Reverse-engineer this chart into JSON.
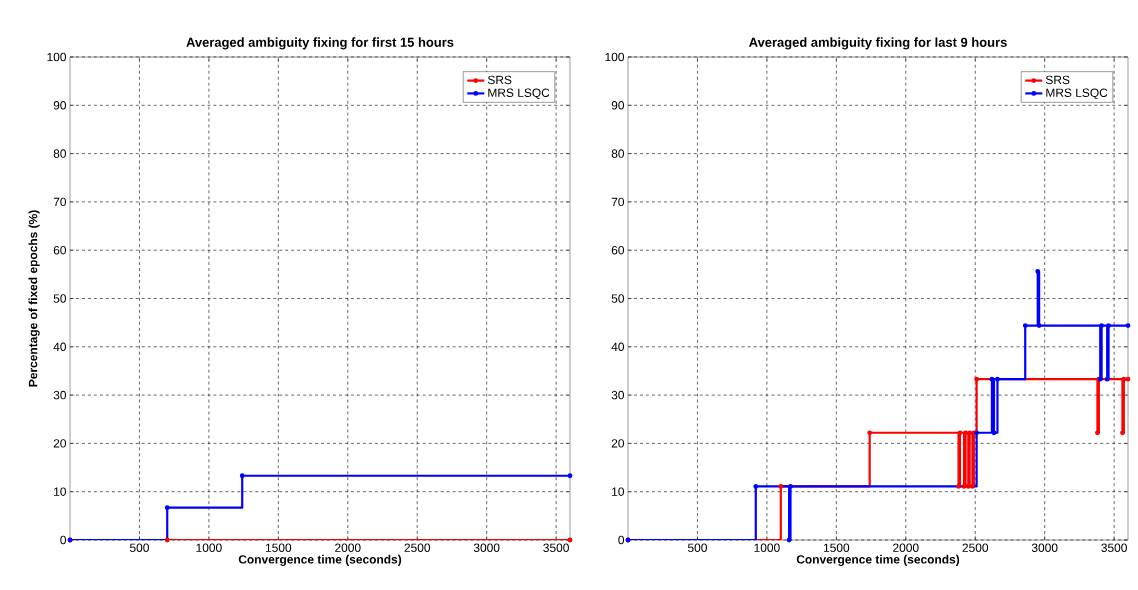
{
  "chart_data": [
    {
      "type": "step",
      "title": "Averaged ambiguity fixing for first 15 hours",
      "xlabel": "Convergence time (seconds)",
      "ylabel": "Percentage of fixed epochs (%)",
      "xlim": [
        0,
        3600
      ],
      "ylim": [
        0,
        100
      ],
      "xticks": [
        500,
        1000,
        1500,
        2000,
        2500,
        3000,
        3500
      ],
      "yticks": [
        0,
        10,
        20,
        30,
        40,
        50,
        60,
        70,
        80,
        90,
        100
      ],
      "grid": true,
      "legend": "top right",
      "marker": "circle",
      "line_style": "solid",
      "series": [
        {
          "name": "SRS",
          "color": "#ff0000",
          "x": [
            0,
            700,
            3600
          ],
          "values": [
            0,
            0,
            0
          ]
        },
        {
          "name": "MRS LSQC",
          "color": "#0000ff",
          "x": [
            0,
            700,
            1240,
            3600
          ],
          "values": [
            0,
            6.7,
            13.3,
            13.3
          ]
        }
      ]
    },
    {
      "type": "step",
      "title": "Averaged ambiguity fixing for last 9 hours",
      "xlabel": "Convergence time (seconds)",
      "xlim": [
        0,
        3600
      ],
      "ylim": [
        0,
        100
      ],
      "xticks": [
        500,
        1000,
        1500,
        2000,
        2500,
        3000,
        3500
      ],
      "yticks": [
        0,
        10,
        20,
        30,
        40,
        50,
        60,
        70,
        80,
        90,
        100
      ],
      "grid": true,
      "legend": "top right",
      "marker": "circle",
      "line_style": "solid",
      "series": [
        {
          "name": "SRS",
          "color": "#ff0000",
          "x": [
            0,
            1100,
            1740,
            2380,
            2390,
            2420,
            2430,
            2450,
            2460,
            2480,
            2490,
            2510,
            3380,
            3390,
            3560,
            3570,
            3600
          ],
          "values": [
            0,
            11.1,
            22.2,
            11.1,
            22.2,
            11.1,
            22.2,
            11.1,
            22.2,
            11.1,
            22.2,
            33.3,
            22.2,
            33.3,
            22.2,
            33.3,
            33.3
          ]
        },
        {
          "name": "MRS LSQC",
          "color": "#0000ff",
          "x": [
            0,
            920,
            1160,
            1170,
            2510,
            2620,
            2635,
            2660,
            2860,
            2950,
            2960,
            3400,
            3410,
            3450,
            3460,
            3600
          ],
          "values": [
            0,
            11.1,
            0,
            11.1,
            22.2,
            33.3,
            22.2,
            33.3,
            44.4,
            55.6,
            44.4,
            33.3,
            44.4,
            33.3,
            44.4,
            44.4
          ]
        }
      ]
    }
  ]
}
